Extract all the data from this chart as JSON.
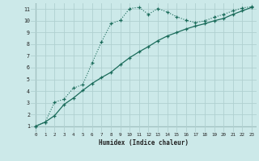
{
  "xlabel": "Humidex (Indice chaleur)",
  "bg_color": "#cce9e9",
  "grid_color": "#b0d0d0",
  "line_color": "#1a6b5a",
  "xlim": [
    -0.5,
    23.5
  ],
  "ylim": [
    0.5,
    11.5
  ],
  "xticks": [
    0,
    1,
    2,
    3,
    4,
    5,
    6,
    7,
    8,
    9,
    10,
    11,
    12,
    13,
    14,
    15,
    16,
    17,
    18,
    19,
    20,
    21,
    22,
    23
  ],
  "yticks": [
    1,
    2,
    3,
    4,
    5,
    6,
    7,
    8,
    9,
    10,
    11
  ],
  "line1_x": [
    0,
    1,
    2,
    3,
    4,
    5,
    6,
    7,
    8,
    9,
    10,
    11,
    12,
    13,
    14,
    15,
    16,
    17,
    18,
    19,
    20,
    21,
    22,
    23
  ],
  "line1_y": [
    1.0,
    1.35,
    3.05,
    3.3,
    4.25,
    4.55,
    6.4,
    8.2,
    9.75,
    10.05,
    11.05,
    11.15,
    10.55,
    11.05,
    10.75,
    10.35,
    10.05,
    9.85,
    10.0,
    10.3,
    10.55,
    10.85,
    11.1,
    11.2
  ],
  "line2_x": [
    0,
    1,
    2,
    3,
    4,
    5,
    6,
    7,
    8,
    9,
    10,
    11,
    12,
    13,
    14,
    15,
    16,
    17,
    18,
    19,
    20,
    21,
    22,
    23
  ],
  "line2_y": [
    1.0,
    1.35,
    1.9,
    2.85,
    3.4,
    4.05,
    4.65,
    5.15,
    5.6,
    6.25,
    6.85,
    7.35,
    7.8,
    8.3,
    8.7,
    9.0,
    9.3,
    9.55,
    9.75,
    10.0,
    10.2,
    10.55,
    10.85,
    11.15
  ]
}
